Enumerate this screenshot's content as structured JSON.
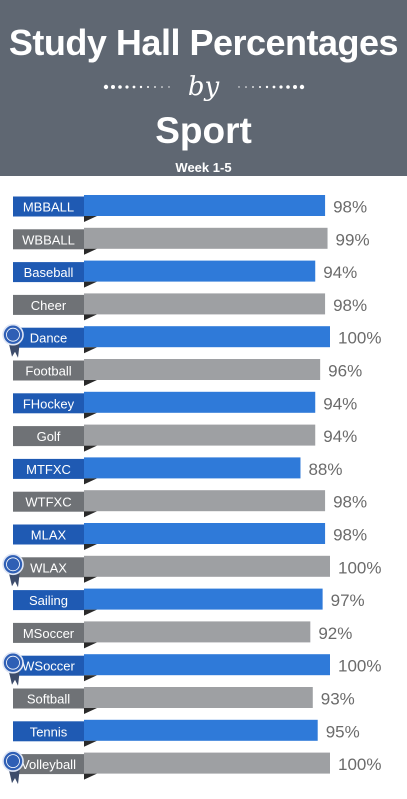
{
  "header": {
    "title": "Study Hall Percentages",
    "by": "by",
    "subtitle": "Sport",
    "week": "Week 1-5"
  },
  "colors": {
    "header_bg": "#5f6772",
    "blue": "#2f7ad9",
    "blue_dark": "#1f5ab3",
    "gray": "#9ea0a3",
    "gray_dark": "#6f7276",
    "value_text": "#6b6b6b",
    "badge": "#2f5fb5"
  },
  "icons": {
    "award": "award-ribbon-icon"
  },
  "chart_data": {
    "type": "bar",
    "orientation": "horizontal",
    "categories": [
      "MBBALL",
      "WBBALL",
      "Baseball",
      "Cheer",
      "Dance",
      "Football",
      "FHockey",
      "Golf",
      "MTFXC",
      "WTFXC",
      "MLAX",
      "WLAX",
      "Sailing",
      "MSoccer",
      "WSoccer",
      "Softball",
      "Tennis",
      "Volleyball"
    ],
    "values": [
      98,
      99,
      94,
      98,
      100,
      96,
      94,
      94,
      88,
      98,
      98,
      100,
      97,
      92,
      100,
      93,
      95,
      100
    ],
    "value_labels": [
      "98%",
      "99%",
      "94%",
      "98%",
      "100%",
      "96%",
      "94%",
      "94%",
      "88%",
      "98%",
      "98%",
      "100%",
      "97%",
      "92%",
      "100%",
      "93%",
      "95%",
      "100%"
    ],
    "bar_colors": [
      "blue",
      "gray",
      "blue",
      "gray",
      "blue",
      "gray",
      "blue",
      "gray",
      "blue",
      "gray",
      "blue",
      "gray",
      "blue",
      "gray",
      "blue",
      "gray",
      "blue",
      "gray"
    ],
    "awards": [
      false,
      false,
      false,
      false,
      true,
      false,
      false,
      false,
      false,
      false,
      false,
      true,
      false,
      false,
      true,
      false,
      false,
      true
    ],
    "xlim": [
      0,
      100
    ]
  }
}
